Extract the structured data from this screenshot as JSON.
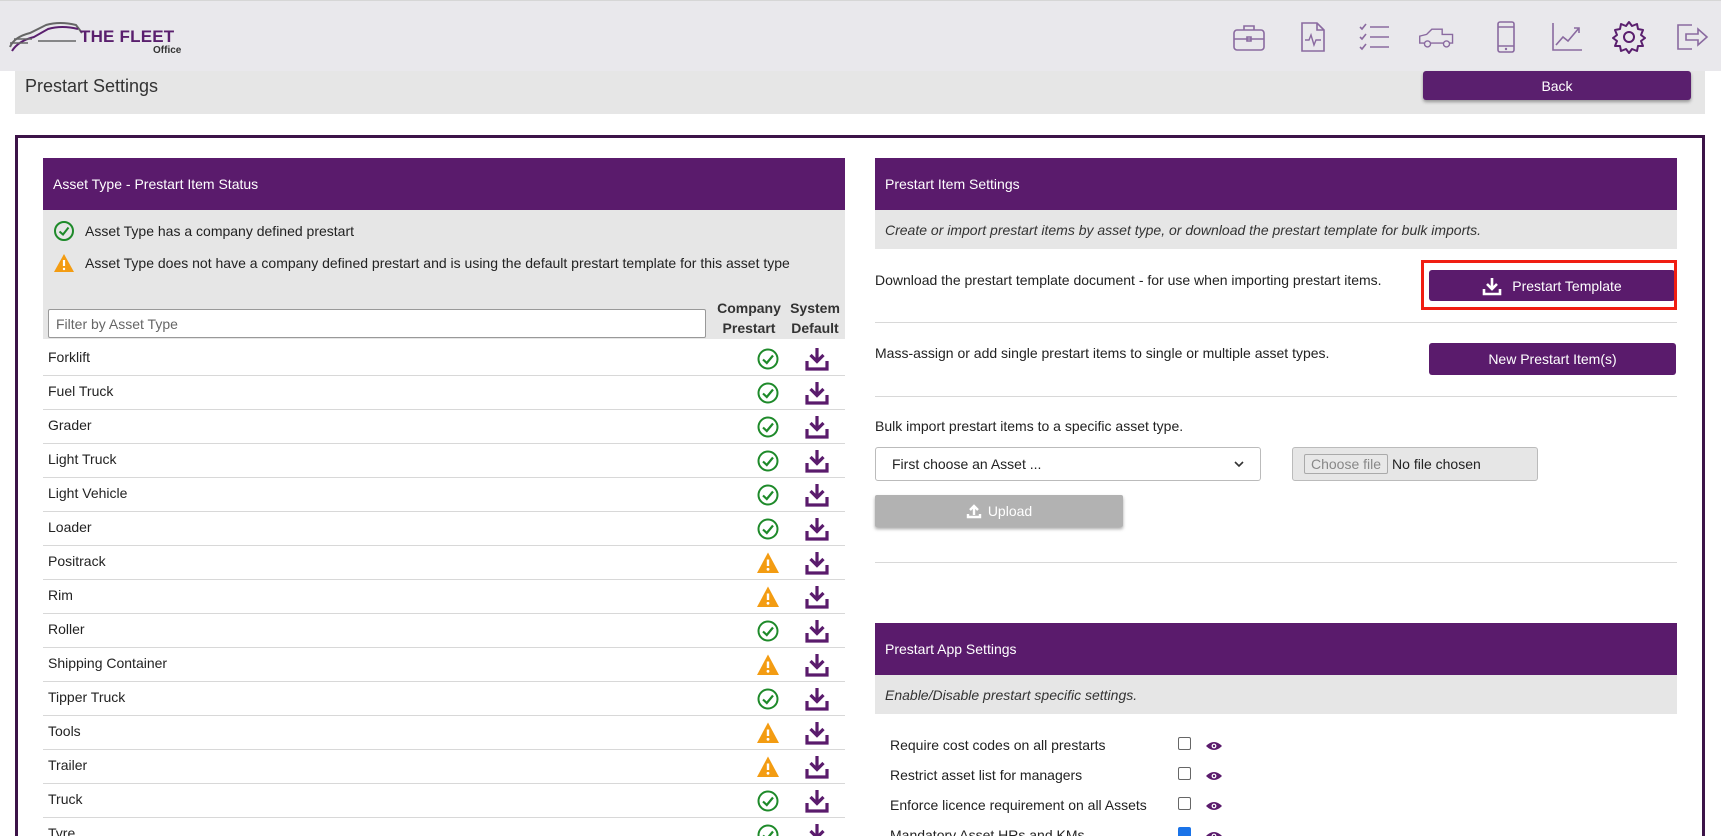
{
  "brand": {
    "title": "THE FLEET",
    "subtitle": "Office"
  },
  "nav_icons": [
    "briefcase-icon",
    "document-chart-icon",
    "checklist-icon",
    "truck-icon",
    "mobile-phone-icon",
    "line-chart-icon",
    "gear-icon",
    "logout-icon"
  ],
  "header": {
    "title": "Prestart Settings",
    "back_label": "Back"
  },
  "left_panel": {
    "title": "Asset Type - Prestart Item Status",
    "legend": {
      "defined": "Asset Type has a company defined prestart",
      "default": "Asset Type does not have a company defined prestart and is using the default prestart template for this asset type"
    },
    "filter_placeholder": "Filter by Asset Type",
    "col_company_1": "Company",
    "col_company_2": "Prestart",
    "col_system_1": "System",
    "col_system_2": "Default",
    "rows": [
      {
        "label": "Forklift",
        "status": "ok"
      },
      {
        "label": "Fuel Truck",
        "status": "ok"
      },
      {
        "label": "Grader",
        "status": "ok"
      },
      {
        "label": "Light Truck",
        "status": "ok"
      },
      {
        "label": "Light Vehicle",
        "status": "ok"
      },
      {
        "label": "Loader",
        "status": "ok"
      },
      {
        "label": "Positrack",
        "status": "warn"
      },
      {
        "label": "Rim",
        "status": "warn"
      },
      {
        "label": "Roller",
        "status": "ok"
      },
      {
        "label": "Shipping Container",
        "status": "warn"
      },
      {
        "label": "Tipper Truck",
        "status": "ok"
      },
      {
        "label": "Tools",
        "status": "warn"
      },
      {
        "label": "Trailer",
        "status": "warn"
      },
      {
        "label": "Truck",
        "status": "ok"
      },
      {
        "label": "Tyre",
        "status": "ok"
      }
    ]
  },
  "item_settings": {
    "title": "Prestart Item Settings",
    "subtitle": "Create or import prestart items by asset type, or download the prestart template for bulk imports.",
    "template_text": "Download the prestart template document - for use when importing prestart items.",
    "template_button": "Prestart Template",
    "mass_text": "Mass-assign or add single prestart items to single or multiple asset types.",
    "new_button": "New Prestart Item(s)",
    "bulk_text": "Bulk import prestart items to a specific asset type.",
    "asset_select_value": "First choose an Asset ...",
    "choose_file_label": "Choose file",
    "no_file_label": "No file chosen",
    "upload_label": "Upload"
  },
  "app_settings": {
    "title": "Prestart App Settings",
    "subtitle": "Enable/Disable prestart specific settings.",
    "settings": [
      {
        "label": "Require cost codes on all prestarts",
        "checked": false
      },
      {
        "label": "Restrict asset list for managers",
        "checked": false
      },
      {
        "label": "Enforce licence requirement on all Assets",
        "checked": false
      },
      {
        "label": "Mandatory Asset HRs and KMs",
        "checked": true
      }
    ]
  },
  "colors": {
    "brand_purple": "#5a1b6c",
    "ok_green": "#1e8a2a",
    "warn_orange": "#f39c12",
    "highlight_red": "#f01e12"
  }
}
